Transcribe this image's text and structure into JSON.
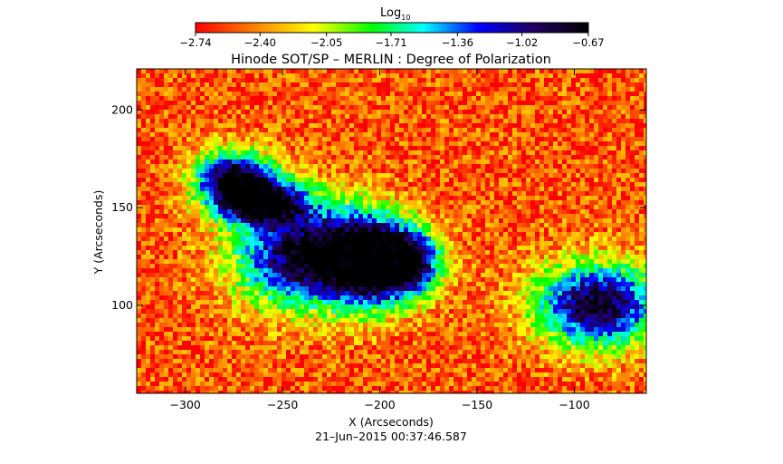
{
  "chart_data": {
    "type": "heatmap",
    "title": "Hinode SOT/SP – MERLIN : Degree of Polarization",
    "xlabel": "X (Arcseconds)",
    "ylabel": "Y (Arcseconds)",
    "xlim": [
      -325,
      -63
    ],
    "ylim": [
      55,
      221
    ],
    "x_ticks": [
      -300,
      -250,
      -200,
      -150,
      -100
    ],
    "x_tick_labels": [
      "−300",
      "−250",
      "−200",
      "−150",
      "−100"
    ],
    "y_ticks": [
      100,
      150,
      200
    ],
    "y_tick_labels": [
      "100",
      "150",
      "200"
    ],
    "colorbar": {
      "label_main": "Log",
      "label_sub": "10",
      "range": [
        -2.74,
        -0.67
      ],
      "ticks": [
        -2.74,
        -2.4,
        -2.05,
        -1.71,
        -1.36,
        -1.02,
        -0.67
      ],
      "tick_labels": [
        "−2.74",
        "−2.40",
        "−2.05",
        "−1.71",
        "−1.36",
        "−1.02",
        "−0.67"
      ],
      "colors": [
        "#ff0000",
        "#ff8000",
        "#ffff00",
        "#00ff00",
        "#00ffff",
        "#0000ff",
        "#200060",
        "#000000"
      ]
    },
    "background_level": -2.55,
    "features": [
      {
        "x": -275,
        "y": 165,
        "sx": 14,
        "sy": 10,
        "peak": -0.75
      },
      {
        "x": -260,
        "y": 153,
        "sx": 16,
        "sy": 8,
        "peak": -0.8
      },
      {
        "x": -238,
        "y": 125,
        "sx": 25,
        "sy": 18,
        "peak": -0.7
      },
      {
        "x": -206,
        "y": 123,
        "sx": 14,
        "sy": 16,
        "peak": -0.8
      },
      {
        "x": -185,
        "y": 122,
        "sx": 12,
        "sy": 12,
        "peak": -0.85
      },
      {
        "x": -88,
        "y": 100,
        "sx": 22,
        "sy": 15,
        "peak": -0.7
      }
    ],
    "timestamp": "21–Jun–2015 00:37:46.587"
  }
}
